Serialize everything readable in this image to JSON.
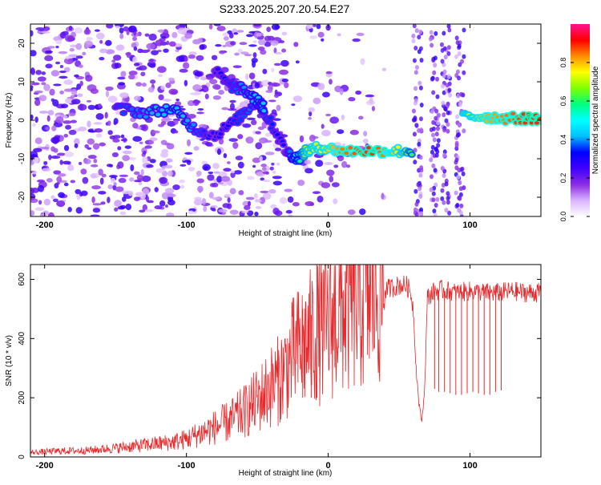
{
  "title": "S233.2025.207.20.54.E27",
  "chart_data": [
    {
      "type": "heatmap",
      "xlabel": "Height of straight line (km)",
      "ylabel": "Frequency (Hz)",
      "xlim": [
        -210,
        150
      ],
      "ylim": [
        -25,
        25
      ],
      "x_ticks": [
        -200,
        -100,
        0,
        100
      ],
      "y_ticks": [
        -20,
        -10,
        0,
        10,
        20
      ],
      "colorbar": {
        "label": "Normalized spectral amplitude",
        "range": [
          0,
          1
        ],
        "ticks": [
          0.0,
          0.2,
          0.4,
          0.6,
          0.8
        ],
        "tick_labels": [
          "0.0",
          "0.2",
          "0.4",
          "0.6",
          "0.8"
        ],
        "colormap": [
          "#ffffff",
          "#d9b3ff",
          "#8a2be2",
          "#3f00ff",
          "#0000ff",
          "#00bfff",
          "#00ffff",
          "#00ff7f",
          "#7fff00",
          "#ffff00",
          "#ff8c00",
          "#ff0000",
          "#ff1493"
        ]
      },
      "ridges": [
        {
          "x": [
            -150,
            -130,
            -110,
            -95,
            -80,
            -65,
            -50,
            -40,
            -30,
            -22,
            -15,
            -5,
            10,
            30,
            45,
            60
          ],
          "y": [
            3,
            2,
            3,
            -2,
            -4,
            0,
            5,
            -1,
            -8,
            -10,
            -8,
            -7,
            -8,
            -8,
            -8,
            -8
          ],
          "amp": [
            0.35,
            0.4,
            0.45,
            0.4,
            0.3,
            0.35,
            0.4,
            0.35,
            0.3,
            0.55,
            0.7,
            0.75,
            0.85,
            0.9,
            0.8,
            0.6
          ]
        },
        {
          "x": [
            -80,
            -70,
            -60,
            -50,
            -45
          ],
          "y": [
            13,
            9,
            8,
            5,
            3
          ],
          "amp": [
            0.3,
            0.35,
            0.4,
            0.45,
            0.45
          ]
        },
        {
          "x": [
            95,
            110,
            125,
            140,
            150
          ],
          "y": [
            1,
            1,
            0.5,
            0.5,
            0.5
          ],
          "amp": [
            0.7,
            0.8,
            0.85,
            0.9,
            0.9
          ]
        }
      ]
    },
    {
      "type": "line",
      "xlabel": "Height of straight line (km)",
      "ylabel": "SNR (10 * v/v)",
      "xlim": [
        -210,
        150
      ],
      "ylim": [
        0,
        650
      ],
      "x_ticks": [
        -200,
        -100,
        0,
        100
      ],
      "y_ticks": [
        0,
        200,
        400,
        600
      ],
      "series": [
        {
          "color": "#e8282b",
          "x": [
            -210,
            -190,
            -170,
            -150,
            -130,
            -110,
            -100,
            -90,
            -80,
            -70,
            -60,
            -50,
            -40,
            -35,
            -30,
            -25,
            -20,
            -15,
            -10,
            -5,
            0,
            10,
            20,
            30,
            40,
            50,
            55,
            58,
            60,
            62,
            64,
            66,
            68,
            70,
            75,
            80,
            90,
            100,
            110,
            120,
            130,
            140,
            150
          ],
          "y": [
            15,
            20,
            22,
            30,
            40,
            50,
            60,
            80,
            100,
            120,
            150,
            190,
            240,
            260,
            300,
            340,
            370,
            390,
            410,
            430,
            450,
            490,
            520,
            545,
            565,
            580,
            580,
            560,
            500,
            300,
            180,
            120,
            230,
            540,
            560,
            565,
            555,
            560,
            555,
            555,
            560,
            555,
            555
          ],
          "dips": [
            {
              "x": 75,
              "y": 230
            },
            {
              "x": 78,
              "y": 220
            },
            {
              "x": 82,
              "y": 220
            },
            {
              "x": 86,
              "y": 215
            },
            {
              "x": 90,
              "y": 210
            },
            {
              "x": 94,
              "y": 210
            },
            {
              "x": 98,
              "y": 215
            },
            {
              "x": 102,
              "y": 220
            },
            {
              "x": 106,
              "y": 215
            },
            {
              "x": 110,
              "y": 210
            },
            {
              "x": 114,
              "y": 210
            },
            {
              "x": 118,
              "y": 220
            },
            {
              "x": 122,
              "y": 225
            }
          ],
          "spikes": [
            {
              "x": -8,
              "y": 650
            },
            {
              "x": -18,
              "y": 500
            },
            {
              "x": -12,
              "y": 480
            }
          ]
        }
      ]
    }
  ]
}
